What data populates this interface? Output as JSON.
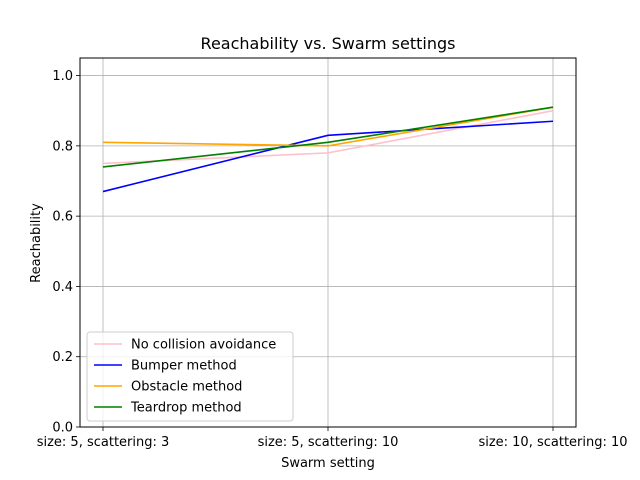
{
  "chart_data": {
    "type": "line",
    "title": "Reachability vs. Swarm settings",
    "xlabel": "Swarm setting",
    "ylabel": "Reachability",
    "categories": [
      "size: 5, scattering: 3",
      "size: 5, scattering: 10",
      "size: 10, scattering: 10"
    ],
    "ylim": [
      0,
      1.05
    ],
    "yticks": [
      "0.0",
      "0.2",
      "0.4",
      "0.6",
      "0.8",
      "1.0"
    ],
    "grid": true,
    "legend_position": "lower-left",
    "series": [
      {
        "name": "No collision avoidance",
        "color": "#ffc0cb",
        "values": [
          0.75,
          0.78,
          0.9
        ]
      },
      {
        "name": "Bumper method",
        "color": "#0000ff",
        "values": [
          0.67,
          0.83,
          0.87
        ]
      },
      {
        "name": "Obstacle method",
        "color": "#ffa500",
        "values": [
          0.81,
          0.8,
          0.91
        ]
      },
      {
        "name": "Teardrop method",
        "color": "#008000",
        "values": [
          0.74,
          0.81,
          0.91
        ]
      }
    ]
  }
}
